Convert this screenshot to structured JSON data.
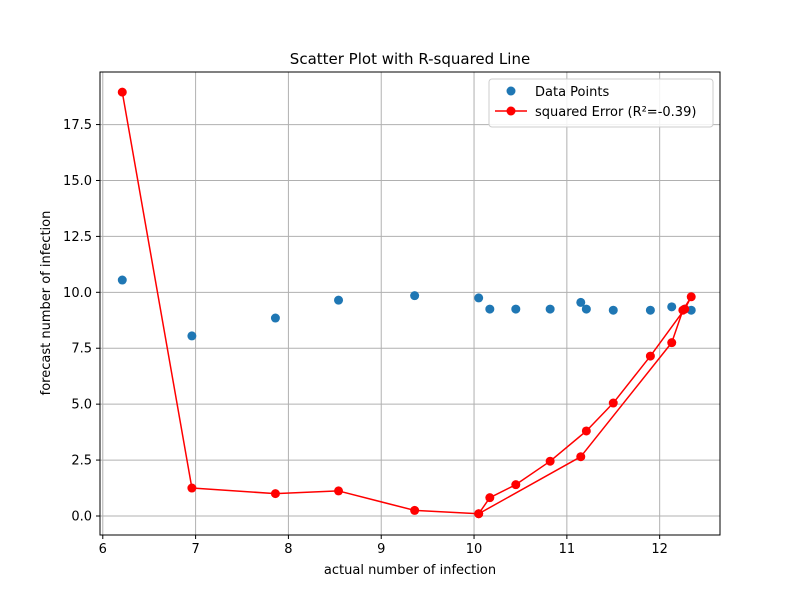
{
  "chart_data": {
    "type": "scatter",
    "title": "Scatter Plot with R-squared Line",
    "xlabel": "actual number of infection",
    "ylabel": "forecast number of infection",
    "xlim": [
      5.97,
      12.65
    ],
    "ylim": [
      -0.85,
      19.85
    ],
    "xticks": [
      6,
      7,
      8,
      9,
      10,
      11,
      12
    ],
    "xtick_labels": [
      "6",
      "7",
      "8",
      "9",
      "10",
      "11",
      "12"
    ],
    "yticks": [
      0.0,
      2.5,
      5.0,
      7.5,
      10.0,
      12.5,
      15.0,
      17.5
    ],
    "ytick_labels": [
      "0.0",
      "2.5",
      "5.0",
      "7.5",
      "10.0",
      "12.5",
      "15.0",
      "17.5"
    ],
    "grid": true,
    "legend_position": "top-right",
    "series": [
      {
        "name": "Data Points",
        "kind": "scatter",
        "color": "#1f77b4",
        "points": [
          [
            6.21,
            10.55
          ],
          [
            6.96,
            8.05
          ],
          [
            7.86,
            8.85
          ],
          [
            8.54,
            9.65
          ],
          [
            9.36,
            9.85
          ],
          [
            10.05,
            9.75
          ],
          [
            10.17,
            9.25
          ],
          [
            10.45,
            9.25
          ],
          [
            10.82,
            9.25
          ],
          [
            11.15,
            9.55
          ],
          [
            11.21,
            9.25
          ],
          [
            11.5,
            9.2
          ],
          [
            11.9,
            9.2
          ],
          [
            12.13,
            9.35
          ],
          [
            12.27,
            9.25
          ],
          [
            12.34,
            9.2
          ]
        ]
      },
      {
        "name": "squared Error (R²=-0.39)",
        "kind": "line-marker",
        "color": "#ff0000",
        "points": [
          [
            6.21,
            18.95
          ],
          [
            6.96,
            1.25
          ],
          [
            7.86,
            1.0
          ],
          [
            8.54,
            1.12
          ],
          [
            9.36,
            0.25
          ],
          [
            10.05,
            0.1
          ],
          [
            10.17,
            0.82
          ],
          [
            10.45,
            1.4
          ],
          [
            10.82,
            2.45
          ],
          [
            11.21,
            3.8
          ],
          [
            11.5,
            5.05
          ],
          [
            11.9,
            7.15
          ],
          [
            12.27,
            9.25
          ],
          [
            12.34,
            9.8
          ],
          [
            12.25,
            9.2
          ],
          [
            12.13,
            7.75
          ],
          [
            11.15,
            2.65
          ],
          [
            10.05,
            0.1
          ]
        ]
      }
    ]
  }
}
